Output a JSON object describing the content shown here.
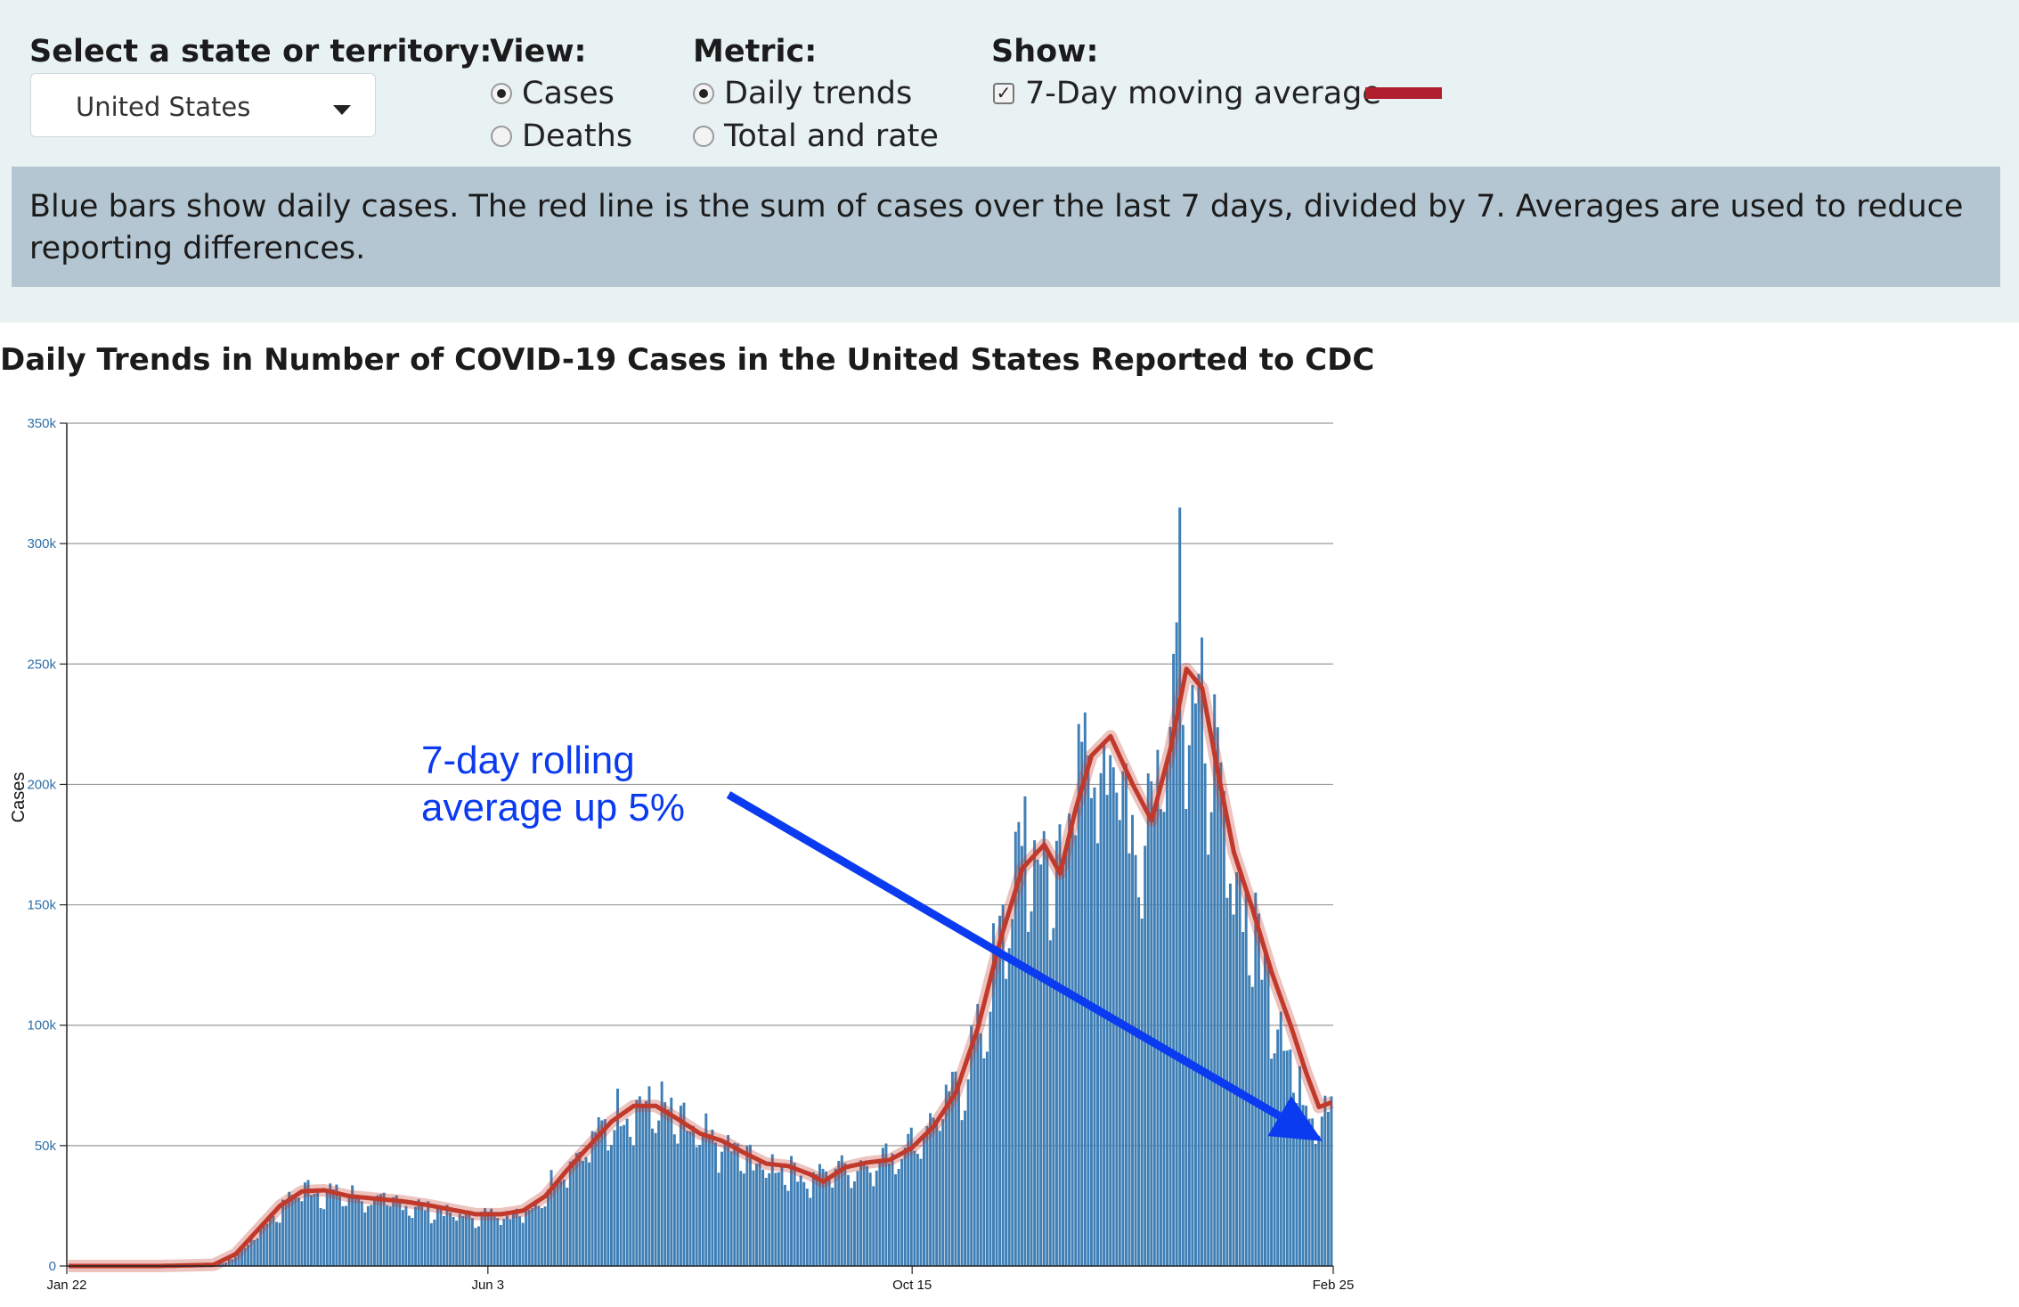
{
  "controls": {
    "state_label": "Select a state or territory:",
    "state_value": "United States",
    "view_label": "View:",
    "view_options": [
      "Cases",
      "Deaths"
    ],
    "view_selected": "Cases",
    "metric_label": "Metric:",
    "metric_options": [
      "Daily trends",
      "Total and rate"
    ],
    "metric_selected": "Daily trends",
    "show_label": "Show:",
    "show_option": "7-Day moving average",
    "show_checked": true,
    "swatch_color": "#b11f2e"
  },
  "info_text": "Blue bars show daily cases. The red line is the sum of cases over the last 7 days, divided by 7. Averages are used to reduce reporting differences.",
  "chart_data": {
    "type": "bar",
    "title": "Daily Trends in Number of COVID-19 Cases in the United States Reported to CDC",
    "ylabel": "Cases",
    "xlabel": "",
    "ylim": [
      0,
      350000
    ],
    "y_ticks": [
      0,
      50000,
      100000,
      150000,
      200000,
      250000,
      300000,
      350000
    ],
    "y_tick_labels": [
      "0",
      "50k",
      "100k",
      "150k",
      "200k",
      "250k",
      "300k",
      "350k"
    ],
    "x_range": [
      "2020-01-22",
      "2021-02-25"
    ],
    "x_ticks": [
      {
        "label": "Jan 22",
        "date": "2020-01-22"
      },
      {
        "label": "Jun 3",
        "date": "2020-06-03"
      },
      {
        "label": "Oct 15",
        "date": "2020-10-15"
      },
      {
        "label": "Feb 25",
        "date": "2021-02-25"
      }
    ],
    "grid": true,
    "bar_color": "#3f7fb5",
    "line_color": "#c0392b",
    "series": [
      {
        "name": "Daily cases",
        "type": "bar",
        "points": [
          [
            "2020-01-22",
            0
          ],
          [
            "2020-02-15",
            0
          ],
          [
            "2020-03-05",
            100
          ],
          [
            "2020-03-12",
            1500
          ],
          [
            "2020-03-18",
            8000
          ],
          [
            "2020-03-24",
            18000
          ],
          [
            "2020-03-30",
            25000
          ],
          [
            "2020-04-04",
            33000
          ],
          [
            "2020-04-10",
            32000
          ],
          [
            "2020-04-18",
            30000
          ],
          [
            "2020-04-26",
            28000
          ],
          [
            "2020-05-04",
            27000
          ],
          [
            "2020-05-12",
            25000
          ],
          [
            "2020-05-20",
            23000
          ],
          [
            "2020-05-28",
            21000
          ],
          [
            "2020-06-05",
            22000
          ],
          [
            "2020-06-12",
            22000
          ],
          [
            "2020-06-18",
            26000
          ],
          [
            "2020-06-24",
            37000
          ],
          [
            "2020-06-30",
            46000
          ],
          [
            "2020-07-06",
            53000
          ],
          [
            "2020-07-12",
            62000
          ],
          [
            "2020-07-18",
            67000
          ],
          [
            "2020-07-24",
            68000
          ],
          [
            "2020-07-30",
            65000
          ],
          [
            "2020-08-06",
            56000
          ],
          [
            "2020-08-14",
            52000
          ],
          [
            "2020-08-22",
            47000
          ],
          [
            "2020-08-30",
            42000
          ],
          [
            "2020-09-06",
            42000
          ],
          [
            "2020-09-13",
            36000
          ],
          [
            "2020-09-20",
            42000
          ],
          [
            "2020-09-28",
            42000
          ],
          [
            "2020-10-05",
            45000
          ],
          [
            "2020-10-12",
            50000
          ],
          [
            "2020-10-19",
            57000
          ],
          [
            "2020-10-26",
            68000
          ],
          [
            "2020-11-02",
            85000
          ],
          [
            "2020-11-09",
            115000
          ],
          [
            "2020-11-14",
            150000
          ],
          [
            "2020-11-19",
            170000
          ],
          [
            "2020-11-24",
            175000
          ],
          [
            "2020-11-28",
            160000
          ],
          [
            "2020-12-03",
            190000
          ],
          [
            "2020-12-10",
            215000
          ],
          [
            "2020-12-17",
            220000
          ],
          [
            "2020-12-22",
            195000
          ],
          [
            "2020-12-27",
            180000
          ],
          [
            "2021-01-01",
            210000
          ],
          [
            "2021-01-05",
            240000
          ],
          [
            "2021-01-08",
            285000
          ],
          [
            "2021-01-09",
            260000
          ],
          [
            "2021-01-11",
            240000
          ],
          [
            "2021-01-15",
            235000
          ],
          [
            "2021-01-20",
            200000
          ],
          [
            "2021-01-25",
            165000
          ],
          [
            "2021-01-31",
            145000
          ],
          [
            "2021-02-05",
            120000
          ],
          [
            "2021-02-10",
            100000
          ],
          [
            "2021-02-16",
            70000
          ],
          [
            "2021-02-20",
            66000
          ],
          [
            "2021-02-25",
            72000
          ]
        ]
      },
      {
        "name": "7-Day moving average",
        "type": "line",
        "points": [
          [
            "2020-01-22",
            0
          ],
          [
            "2020-02-20",
            0
          ],
          [
            "2020-03-08",
            500
          ],
          [
            "2020-03-15",
            5000
          ],
          [
            "2020-03-22",
            15000
          ],
          [
            "2020-03-29",
            25000
          ],
          [
            "2020-04-05",
            31000
          ],
          [
            "2020-04-12",
            31500
          ],
          [
            "2020-04-20",
            29000
          ],
          [
            "2020-04-28",
            28000
          ],
          [
            "2020-05-06",
            27000
          ],
          [
            "2020-05-14",
            25500
          ],
          [
            "2020-05-22",
            23500
          ],
          [
            "2020-05-30",
            21500
          ],
          [
            "2020-06-07",
            21500
          ],
          [
            "2020-06-14",
            23000
          ],
          [
            "2020-06-21",
            29000
          ],
          [
            "2020-06-28",
            40000
          ],
          [
            "2020-07-05",
            50000
          ],
          [
            "2020-07-12",
            60000
          ],
          [
            "2020-07-19",
            66500
          ],
          [
            "2020-07-26",
            66500
          ],
          [
            "2020-08-02",
            61000
          ],
          [
            "2020-08-09",
            55000
          ],
          [
            "2020-08-16",
            52000
          ],
          [
            "2020-08-23",
            47000
          ],
          [
            "2020-08-30",
            42500
          ],
          [
            "2020-09-06",
            41500
          ],
          [
            "2020-09-13",
            38000
          ],
          [
            "2020-09-17",
            35000
          ],
          [
            "2020-09-24",
            41000
          ],
          [
            "2020-10-01",
            43000
          ],
          [
            "2020-10-08",
            44000
          ],
          [
            "2020-10-15",
            49000
          ],
          [
            "2020-10-22",
            58000
          ],
          [
            "2020-10-29",
            72000
          ],
          [
            "2020-11-05",
            99000
          ],
          [
            "2020-11-12",
            135000
          ],
          [
            "2020-11-19",
            165000
          ],
          [
            "2020-11-26",
            175000
          ],
          [
            "2020-12-01",
            163000
          ],
          [
            "2020-12-06",
            190000
          ],
          [
            "2020-12-11",
            212000
          ],
          [
            "2020-12-17",
            220000
          ],
          [
            "2020-12-24",
            200000
          ],
          [
            "2020-12-30",
            185000
          ],
          [
            "2021-01-05",
            215000
          ],
          [
            "2021-01-10",
            248000
          ],
          [
            "2021-01-15",
            240000
          ],
          [
            "2021-01-20",
            205000
          ],
          [
            "2021-01-25",
            172000
          ],
          [
            "2021-01-31",
            148000
          ],
          [
            "2021-02-06",
            122000
          ],
          [
            "2021-02-12",
            100000
          ],
          [
            "2021-02-17",
            80000
          ],
          [
            "2021-02-21",
            66000
          ],
          [
            "2021-02-25",
            68000
          ]
        ]
      }
    ],
    "annotations": [
      {
        "text": [
          "7-day rolling",
          "average up 5%"
        ],
        "color": "#0b3bf0",
        "arrow_points_to": [
          "2021-02-25",
          50000
        ]
      }
    ]
  }
}
